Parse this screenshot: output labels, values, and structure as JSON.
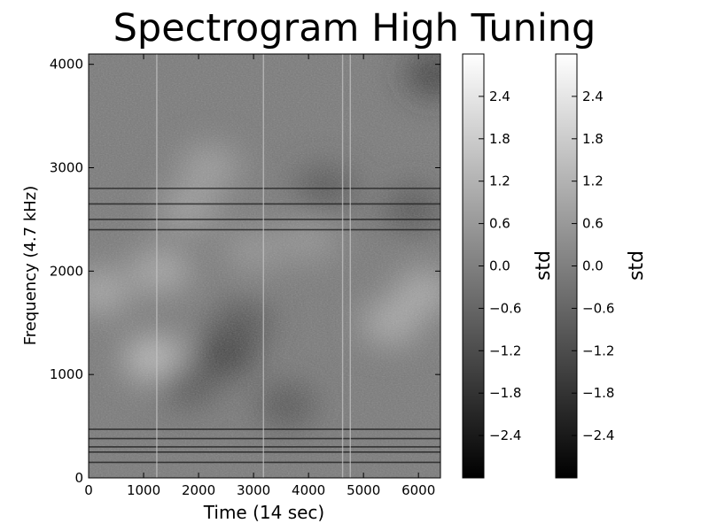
{
  "chart_data": {
    "type": "heatmap",
    "title": "Spectrogram High Tuning",
    "xlabel": "Time (14 sec)",
    "ylabel": "Frequency (4.7 kHz)",
    "xlim": [
      0,
      6400
    ],
    "ylim": [
      0,
      4100
    ],
    "x_ticks": [
      0,
      1000,
      2000,
      3000,
      4000,
      5000,
      6000
    ],
    "x_tick_labels": [
      "0",
      "1000",
      "2000",
      "3000",
      "4000",
      "5000",
      "6000"
    ],
    "y_ticks": [
      0,
      1000,
      2000,
      3000,
      4000
    ],
    "y_tick_labels": [
      "0",
      "1000",
      "2000",
      "3000",
      "4000"
    ],
    "colormap": "gray",
    "grid": false,
    "colorbars": [
      {
        "label": "std",
        "vmin": -3.0,
        "vmax": 3.0,
        "ticks": [
          2.4,
          1.8,
          1.2,
          0.6,
          0.0,
          -0.6,
          -1.2,
          -1.8,
          -2.4
        ],
        "tick_labels": [
          "2.4",
          "1.8",
          "1.2",
          "0.6",
          "0.0",
          "−0.6",
          "−1.2",
          "−1.8",
          "−2.4"
        ]
      },
      {
        "label": "std",
        "vmin": -3.0,
        "vmax": 3.0,
        "ticks": [
          2.4,
          1.8,
          1.2,
          0.6,
          0.0,
          -0.6,
          -1.2,
          -1.8,
          -2.4
        ],
        "tick_labels": [
          "2.4",
          "1.8",
          "1.2",
          "0.6",
          "0.0",
          "−0.6",
          "−1.2",
          "−1.8",
          "−2.4"
        ]
      }
    ],
    "features": {
      "vertical_lines_x": [
        1240,
        3180,
        4620,
        4760
      ],
      "dark_bands_y": [
        150,
        250,
        300,
        380,
        470,
        2400,
        2500,
        2650,
        2800
      ],
      "bright_patches": [
        {
          "x": 1200,
          "y": 1150,
          "level": 1.8
        },
        {
          "x": 200,
          "y": 1800,
          "level": 1.2
        },
        {
          "x": 1300,
          "y": 2000,
          "level": 1.2
        },
        {
          "x": 2200,
          "y": 3000,
          "level": 0.9
        },
        {
          "x": 5500,
          "y": 1500,
          "level": 1.2
        },
        {
          "x": 6100,
          "y": 1800,
          "level": 1.2
        },
        {
          "x": 3000,
          "y": 2200,
          "level": 0.6
        },
        {
          "x": 1800,
          "y": 2600,
          "level": 0.9
        },
        {
          "x": 4000,
          "y": 2300,
          "level": 0.6
        }
      ],
      "dark_patches": [
        {
          "x": 2500,
          "y": 1200,
          "level": -1.8
        },
        {
          "x": 3600,
          "y": 700,
          "level": -1.2
        },
        {
          "x": 1800,
          "y": 900,
          "level": -1.2
        },
        {
          "x": 4300,
          "y": 2800,
          "level": -1.2
        },
        {
          "x": 5900,
          "y": 2600,
          "level": -1.2
        },
        {
          "x": 6300,
          "y": 3900,
          "level": -1.8
        },
        {
          "x": 2800,
          "y": 1500,
          "level": -1.2
        }
      ]
    }
  }
}
